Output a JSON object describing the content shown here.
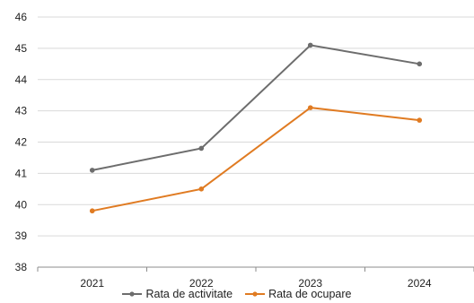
{
  "chart_data": {
    "type": "line",
    "categories": [
      "2021",
      "2022",
      "2023",
      "2024"
    ],
    "series": [
      {
        "name": "Rata de activitate",
        "values": [
          41.1,
          41.8,
          45.1,
          44.5
        ],
        "color": "#6d6d6d"
      },
      {
        "name": "Rata de ocupare",
        "values": [
          39.8,
          40.5,
          43.1,
          42.7
        ],
        "color": "#e07b22"
      }
    ],
    "ylim": [
      38,
      46
    ],
    "yticks": [
      "38",
      "39",
      "40",
      "41",
      "42",
      "43",
      "44",
      "45",
      "46"
    ],
    "grid": true,
    "legend_position": "bottom",
    "title": "",
    "xlabel": "",
    "ylabel": ""
  }
}
